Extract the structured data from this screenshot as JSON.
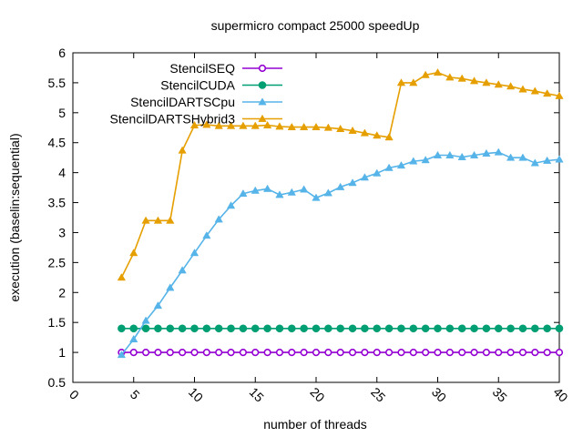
{
  "chart_data": {
    "type": "line",
    "title": "supermicro compact 25000 speedUp",
    "xlabel": "number of threads",
    "ylabel": "execution (baselin:sequential)",
    "xlim": [
      0,
      40
    ],
    "ylim": [
      0.5,
      6
    ],
    "xticks": [
      "0",
      "5",
      "10",
      "15",
      "20",
      "25",
      "30",
      "35",
      "40"
    ],
    "yticks": [
      "0.5",
      "1",
      "1.5",
      "2",
      "2.5",
      "3",
      "3.5",
      "4",
      "4.5",
      "5",
      "5.5",
      "6"
    ],
    "grid": false,
    "legend_position": "top-left",
    "x": [
      4,
      5,
      6,
      7,
      8,
      9,
      10,
      11,
      12,
      13,
      14,
      15,
      16,
      17,
      18,
      19,
      20,
      21,
      22,
      23,
      24,
      25,
      26,
      27,
      28,
      29,
      30,
      31,
      32,
      33,
      34,
      35,
      36,
      37,
      38,
      39,
      40
    ],
    "series": [
      {
        "name": "StencilSEQ",
        "color": "#9400d3",
        "marker": "circle-open",
        "values": [
          1,
          1,
          1,
          1,
          1,
          1,
          1,
          1,
          1,
          1,
          1,
          1,
          1,
          1,
          1,
          1,
          1,
          1,
          1,
          1,
          1,
          1,
          1,
          1,
          1,
          1,
          1,
          1,
          1,
          1,
          1,
          1,
          1,
          1,
          1,
          1,
          1
        ]
      },
      {
        "name": "StencilCUDA",
        "color": "#009e73",
        "marker": "circle-filled",
        "values": [
          1.4,
          1.4,
          1.4,
          1.4,
          1.4,
          1.4,
          1.4,
          1.4,
          1.4,
          1.4,
          1.4,
          1.4,
          1.4,
          1.4,
          1.4,
          1.4,
          1.4,
          1.4,
          1.4,
          1.4,
          1.4,
          1.4,
          1.4,
          1.4,
          1.4,
          1.4,
          1.4,
          1.4,
          1.4,
          1.4,
          1.4,
          1.4,
          1.4,
          1.4,
          1.4,
          1.4,
          1.4
        ]
      },
      {
        "name": "StencilDARTSCpu",
        "color": "#56b4e9",
        "marker": "triangle",
        "values": [
          0.96,
          1.22,
          1.53,
          1.78,
          2.08,
          2.37,
          2.66,
          2.95,
          3.22,
          3.45,
          3.65,
          3.7,
          3.73,
          3.63,
          3.67,
          3.72,
          3.58,
          3.66,
          3.76,
          3.83,
          3.92,
          3.99,
          4.08,
          4.12,
          4.19,
          4.21,
          4.29,
          4.29,
          4.26,
          4.29,
          4.32,
          4.34,
          4.25,
          4.25,
          4.16,
          4.2,
          4.22
        ]
      },
      {
        "name": "StencilDARTSHybrid3",
        "color": "#e69f00",
        "marker": "triangle",
        "values": [
          2.25,
          2.66,
          3.2,
          3.2,
          3.2,
          4.37,
          4.79,
          4.8,
          4.78,
          4.78,
          4.78,
          4.78,
          4.79,
          4.77,
          4.76,
          4.76,
          4.76,
          4.75,
          4.73,
          4.7,
          4.66,
          4.62,
          4.59,
          5.5,
          5.5,
          5.63,
          5.67,
          5.59,
          5.57,
          5.53,
          5.5,
          5.47,
          5.44,
          5.39,
          5.36,
          5.32,
          5.28
        ]
      }
    ]
  }
}
